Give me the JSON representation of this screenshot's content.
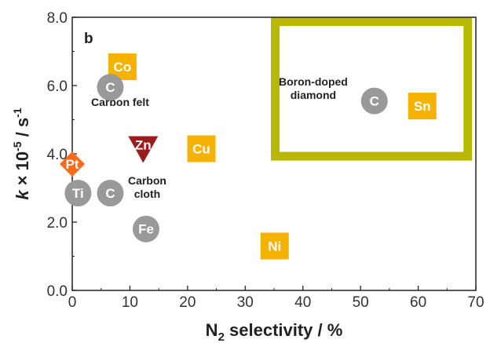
{
  "chart_data": {
    "type": "scatter",
    "panel_label": "b",
    "xlabel": {
      "main": "N",
      "sub": "2",
      "rest": " selectivity / %"
    },
    "ylabel": {
      "k": "k",
      "mid": " × 10",
      "sup1": "-5",
      "unit": " / s",
      "sup2": "-1"
    },
    "xlim": [
      0,
      70
    ],
    "ylim": [
      0.0,
      8.0
    ],
    "xticks": [
      0,
      10,
      20,
      30,
      40,
      50,
      60,
      70
    ],
    "yticks": [
      "0.0",
      "2.0",
      "4.0",
      "6.0",
      "8.0"
    ],
    "points": [
      {
        "label": "Co",
        "x": 8.7,
        "y": 6.55,
        "marker": "square",
        "color": "#f5b300"
      },
      {
        "label": "C",
        "x": 6.6,
        "y": 5.95,
        "marker": "circle",
        "color": "#999999"
      },
      {
        "label": "Zn",
        "x": 12.3,
        "y": 4.15,
        "marker": "triangle-down",
        "color": "#9b1c1c"
      },
      {
        "label": "Cu",
        "x": 22.4,
        "y": 4.15,
        "marker": "square",
        "color": "#f5b300"
      },
      {
        "label": "Pt",
        "x": 0.0,
        "y": 3.7,
        "marker": "diamond",
        "color": "#ff6a1a"
      },
      {
        "label": "Ti",
        "x": 1.0,
        "y": 2.85,
        "marker": "circle",
        "color": "#999999"
      },
      {
        "label": "C",
        "x": 6.6,
        "y": 2.85,
        "marker": "circle",
        "color": "#999999"
      },
      {
        "label": "Fe",
        "x": 12.8,
        "y": 1.8,
        "marker": "circle",
        "color": "#999999"
      },
      {
        "label": "Ni",
        "x": 35.1,
        "y": 1.3,
        "marker": "square",
        "color": "#f5b300"
      },
      {
        "label": "C",
        "x": 52.4,
        "y": 5.55,
        "marker": "circle",
        "color": "#999999"
      },
      {
        "label": "Sn",
        "x": 60.7,
        "y": 5.4,
        "marker": "square",
        "color": "#f5b300"
      }
    ],
    "annotations": [
      {
        "lines": [
          "Carbon felt"
        ],
        "x": 8.3,
        "y": 5.4
      },
      {
        "lines": [
          "Carbon",
          "cloth"
        ],
        "x": 13.0,
        "y": 3.1
      },
      {
        "lines": [
          "Boron-doped",
          "diamond"
        ],
        "x": 41.8,
        "y": 6.0
      }
    ],
    "highlight_box": {
      "x": [
        35.2,
        68.6
      ],
      "y": [
        3.93,
        7.87
      ],
      "color": "#b8b800"
    }
  }
}
